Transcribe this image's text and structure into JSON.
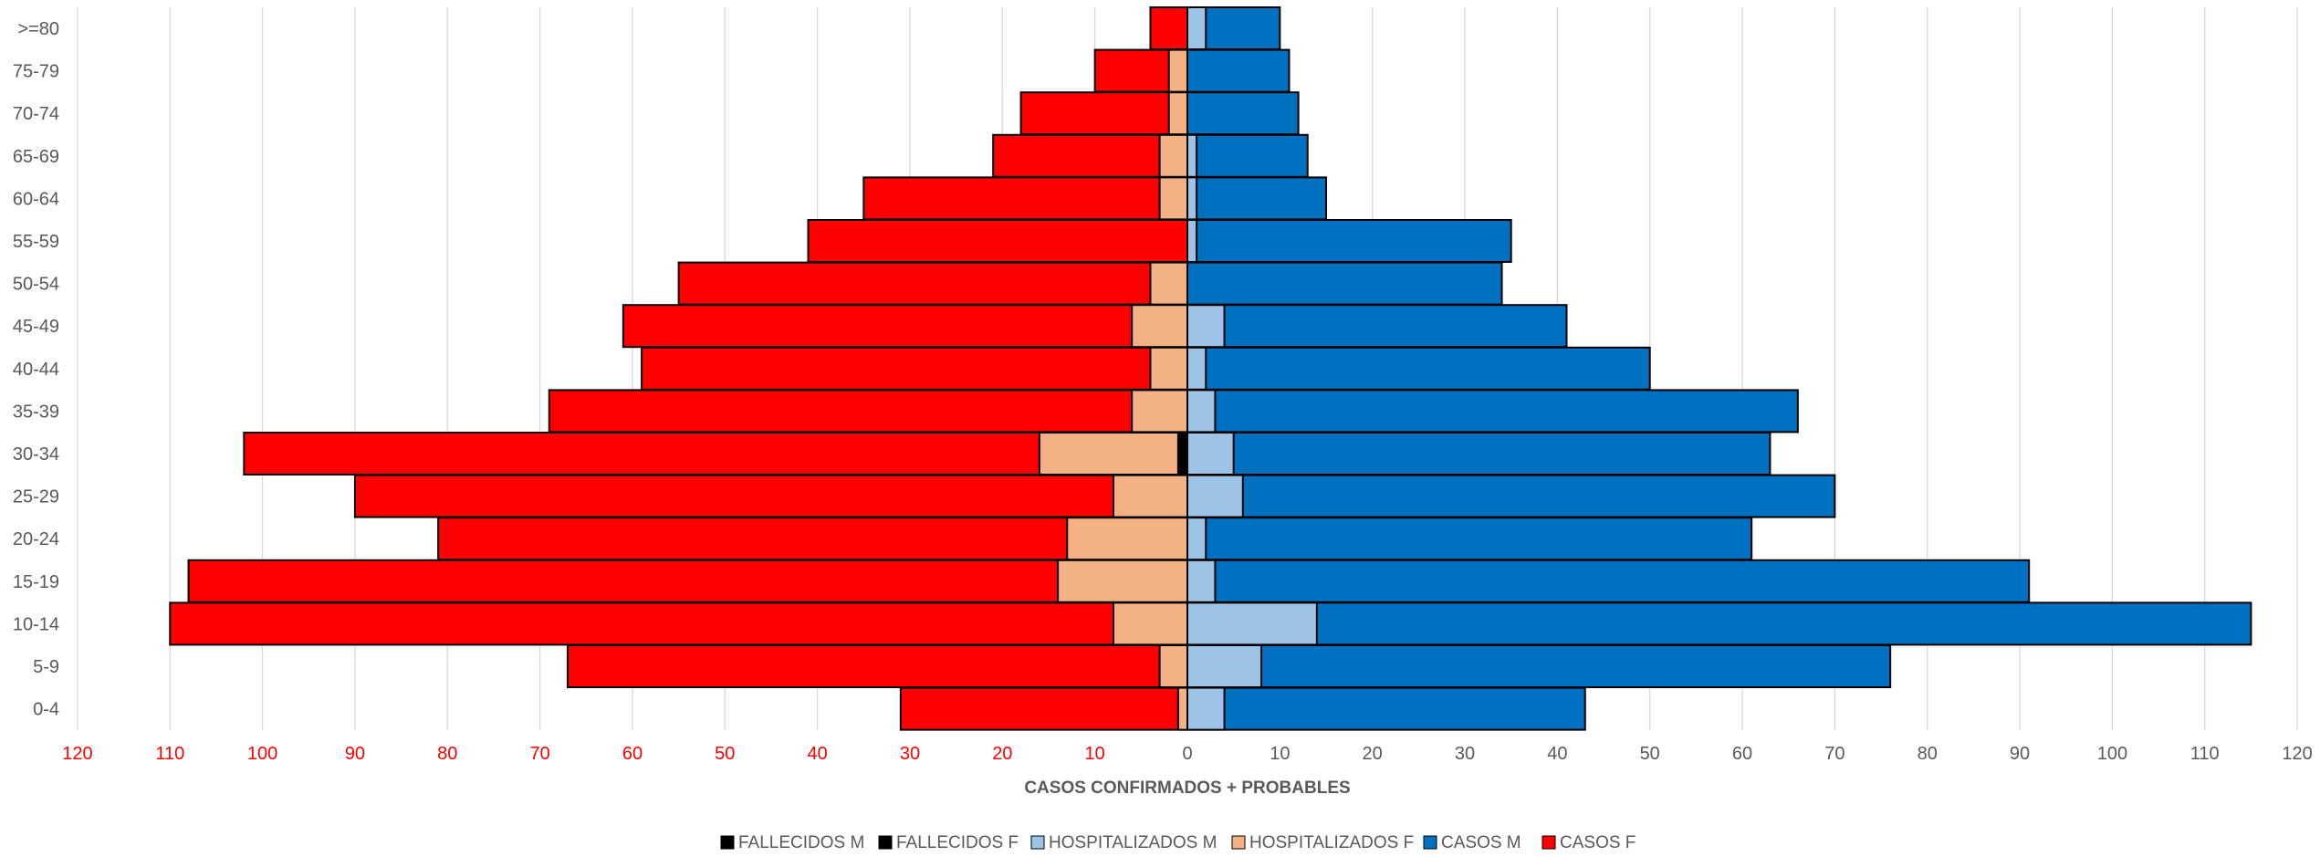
{
  "chart_data": {
    "type": "bar",
    "orientation": "horizontal",
    "layout": "population-pyramid",
    "xlabel": "CASOS CONFIRMADOS + PROBABLES",
    "xlim": [
      -120,
      120
    ],
    "x_ticks": [
      120,
      110,
      100,
      90,
      80,
      70,
      60,
      50,
      40,
      30,
      20,
      10,
      0,
      10,
      20,
      30,
      40,
      50,
      60,
      70,
      80,
      90,
      100,
      110,
      120
    ],
    "grid": true,
    "legend_position": "bottom",
    "categories": [
      ">=80",
      "75-79",
      "70-74",
      "65-69",
      "60-64",
      "55-59",
      "50-54",
      "45-49",
      "40-44",
      "35-39",
      "30-34",
      "25-29",
      "20-24",
      "15-19",
      "10-14",
      "5-9",
      "0-4"
    ],
    "legend": [
      {
        "label": "FALLECIDOS M",
        "color": "#000000"
      },
      {
        "label": "FALLECIDOS F",
        "color": "#000000"
      },
      {
        "label": "HOSPITALIZADOS M",
        "color": "#9DC3E6"
      },
      {
        "label": "HOSPITALIZADOS F",
        "color": "#F4B183"
      },
      {
        "label": "CASOS M",
        "color": "#0070C0"
      },
      {
        "label": "CASOS F",
        "color": "#FF0000"
      }
    ],
    "series": [
      {
        "name": "CASOS F",
        "side": "left",
        "color": "#FF0000",
        "values": [
          4,
          10,
          18,
          21,
          35,
          41,
          55,
          61,
          59,
          69,
          102,
          90,
          81,
          108,
          110,
          67,
          31
        ]
      },
      {
        "name": "HOSPITALIZADOS F",
        "side": "left",
        "color": "#F4B183",
        "values": [
          0,
          2,
          2,
          3,
          3,
          0,
          4,
          6,
          4,
          6,
          16,
          8,
          13,
          14,
          8,
          3,
          1
        ]
      },
      {
        "name": "FALLECIDOS F",
        "side": "left",
        "color": "#000000",
        "values": [
          0,
          0,
          0,
          0,
          0,
          0,
          0,
          0,
          0,
          0,
          1,
          0,
          0,
          0,
          0,
          0,
          0
        ]
      },
      {
        "name": "CASOS M",
        "side": "right",
        "color": "#0070C0",
        "values": [
          10,
          11,
          12,
          13,
          15,
          35,
          34,
          41,
          50,
          66,
          63,
          70,
          61,
          91,
          115,
          76,
          43
        ]
      },
      {
        "name": "HOSPITALIZADOS M",
        "side": "right",
        "color": "#9DC3E6",
        "values": [
          2,
          0,
          0,
          1,
          1,
          1,
          0,
          4,
          2,
          3,
          5,
          6,
          2,
          3,
          14,
          8,
          4
        ]
      },
      {
        "name": "FALLECIDOS M",
        "side": "right",
        "color": "#000000",
        "values": [
          0,
          0,
          0,
          0,
          0,
          0,
          0,
          0,
          0,
          0,
          0,
          0,
          0,
          0,
          0,
          0,
          0
        ]
      }
    ],
    "tick_colors": {
      "negative_side": "#FF0000",
      "positive_side": "#595959"
    }
  }
}
